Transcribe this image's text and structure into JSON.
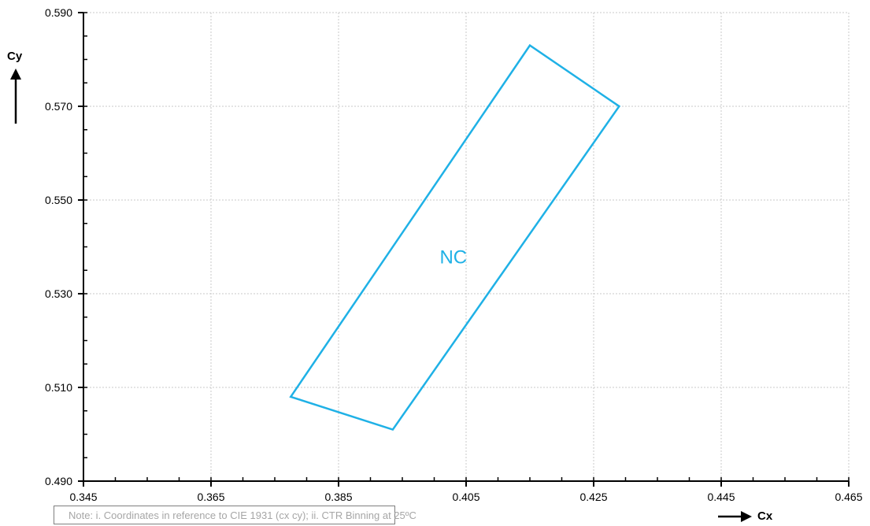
{
  "chart_data": {
    "type": "line",
    "xlabel": "Cx",
    "ylabel": "Cy",
    "xlim": [
      0.345,
      0.465
    ],
    "ylim": [
      0.49,
      0.59
    ],
    "x_ticks": [
      "0.345",
      "0.365",
      "0.385",
      "0.405",
      "0.425",
      "0.445",
      "0.465"
    ],
    "y_ticks": [
      "0.490",
      "0.510",
      "0.530",
      "0.550",
      "0.570",
      "0.590"
    ],
    "x_minor_step": 0.005,
    "y_minor_step": 0.005,
    "grid": "major, dotted",
    "series": [
      {
        "name": "NC",
        "color": "#1fb1e6",
        "closed": true,
        "points": [
          {
            "x": 0.3775,
            "y": 0.508
          },
          {
            "x": 0.415,
            "y": 0.583
          },
          {
            "x": 0.429,
            "y": 0.57
          },
          {
            "x": 0.3935,
            "y": 0.501
          }
        ],
        "label_position": {
          "x": 0.403,
          "y": 0.5365
        }
      }
    ]
  },
  "note": "Note: i. Coordinates in reference to CIE 1931 (cx cy); ii. CTR Binning at 25ºC",
  "colors": {
    "axis": "#000000",
    "grid": "#c8c8c8",
    "region": "#1fb1e6",
    "note_text": "#a6a6a6"
  },
  "icons": {
    "x_axis_arrow": "arrow-right-icon",
    "y_axis_arrow": "arrow-up-icon"
  }
}
